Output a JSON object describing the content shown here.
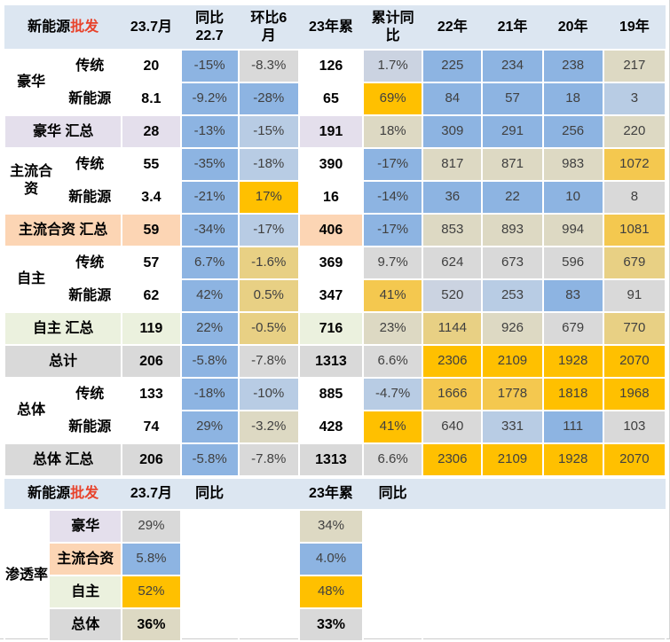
{
  "palette": {
    "header_bg": "#DCE6F1",
    "blue": "#8DB4E2",
    "light_blue": "#B8CCE4",
    "blue_gray": "#CBD3E1",
    "gray": "#D9D9D9",
    "tan": "#DDD9C3",
    "tan_gold": "#E8D084",
    "light_gold": "#F4C84F",
    "gold": "#FFC000",
    "lavender": "#E4DFEC",
    "peach": "#FCD5B4",
    "green": "#EBF1DE",
    "red": "#E8432C",
    "text": "#404040",
    "text_bold": "#000000",
    "white": "#FFFFFF"
  },
  "chart_data": {
    "type": "table",
    "tables": [
      {
        "name": "wholesale",
        "header": {
          "title_black": "新能源",
          "title_red": "批发",
          "cols": [
            "23.7月",
            "同比\n22.7",
            "环比6\n月",
            "23年累",
            "累计同\n比",
            "22年",
            "21年",
            "20年",
            "19年"
          ]
        },
        "rows": [
          {
            "group": "豪华",
            "group_span": 2,
            "label": "传统",
            "cells": [
              {
                "t": "20",
                "bg": "",
                "b": 1
              },
              {
                "t": "-15%",
                "bg": "blue"
              },
              {
                "t": "-8.3%",
                "bg": "gray"
              },
              {
                "t": "126",
                "bg": "",
                "b": 1
              },
              {
                "t": "1.7%",
                "bg": "blue_gray"
              },
              {
                "t": "225",
                "bg": "blue"
              },
              {
                "t": "234",
                "bg": "blue"
              },
              {
                "t": "238",
                "bg": "blue"
              },
              {
                "t": "217",
                "bg": "tan"
              }
            ]
          },
          {
            "label": "新能源",
            "cells": [
              {
                "t": "8.1",
                "bg": "",
                "b": 1
              },
              {
                "t": "-9.2%",
                "bg": "blue"
              },
              {
                "t": "-28%",
                "bg": "blue"
              },
              {
                "t": "65",
                "bg": "",
                "b": 1
              },
              {
                "t": "69%",
                "bg": "gold"
              },
              {
                "t": "84",
                "bg": "blue"
              },
              {
                "t": "57",
                "bg": "blue"
              },
              {
                "t": "18",
                "bg": "blue"
              },
              {
                "t": "3",
                "bg": "light_blue"
              }
            ]
          },
          {
            "merged_label": "豪华 汇总",
            "label_bg": "lavender",
            "cells": [
              {
                "t": "28",
                "bg": "lavender",
                "b": 1
              },
              {
                "t": "-13%",
                "bg": "blue"
              },
              {
                "t": "-15%",
                "bg": "light_blue"
              },
              {
                "t": "191",
                "bg": "lavender",
                "b": 1
              },
              {
                "t": "18%",
                "bg": "tan"
              },
              {
                "t": "309",
                "bg": "blue"
              },
              {
                "t": "291",
                "bg": "blue"
              },
              {
                "t": "256",
                "bg": "blue"
              },
              {
                "t": "220",
                "bg": "tan"
              }
            ]
          },
          {
            "group": "主流合资",
            "group_span": 2,
            "label": "传统",
            "cells": [
              {
                "t": "55",
                "bg": "",
                "b": 1
              },
              {
                "t": "-35%",
                "bg": "blue"
              },
              {
                "t": "-18%",
                "bg": "light_blue"
              },
              {
                "t": "390",
                "bg": "",
                "b": 1
              },
              {
                "t": "-17%",
                "bg": "blue"
              },
              {
                "t": "817",
                "bg": "tan"
              },
              {
                "t": "871",
                "bg": "tan"
              },
              {
                "t": "983",
                "bg": "tan"
              },
              {
                "t": "1072",
                "bg": "light_gold"
              }
            ]
          },
          {
            "label": "新能源",
            "cells": [
              {
                "t": "3.4",
                "bg": "",
                "b": 1
              },
              {
                "t": "-21%",
                "bg": "blue"
              },
              {
                "t": "17%",
                "bg": "gold"
              },
              {
                "t": "16",
                "bg": "",
                "b": 1
              },
              {
                "t": "-14%",
                "bg": "blue"
              },
              {
                "t": "36",
                "bg": "blue"
              },
              {
                "t": "22",
                "bg": "blue"
              },
              {
                "t": "10",
                "bg": "blue"
              },
              {
                "t": "8",
                "bg": "gray"
              }
            ]
          },
          {
            "merged_label": "主流合资 汇总",
            "label_bg": "peach",
            "cells": [
              {
                "t": "59",
                "bg": "peach",
                "b": 1
              },
              {
                "t": "-34%",
                "bg": "blue"
              },
              {
                "t": "-17%",
                "bg": "light_blue"
              },
              {
                "t": "406",
                "bg": "peach",
                "b": 1
              },
              {
                "t": "-17%",
                "bg": "blue"
              },
              {
                "t": "853",
                "bg": "tan"
              },
              {
                "t": "893",
                "bg": "tan"
              },
              {
                "t": "994",
                "bg": "tan"
              },
              {
                "t": "1081",
                "bg": "light_gold"
              }
            ]
          },
          {
            "group": "自主",
            "group_span": 2,
            "label": "传统",
            "cells": [
              {
                "t": "57",
                "bg": "",
                "b": 1
              },
              {
                "t": "6.7%",
                "bg": "blue"
              },
              {
                "t": "-1.6%",
                "bg": "tan_gold"
              },
              {
                "t": "369",
                "bg": "",
                "b": 1
              },
              {
                "t": "9.7%",
                "bg": "gray"
              },
              {
                "t": "624",
                "bg": "gray"
              },
              {
                "t": "673",
                "bg": "gray"
              },
              {
                "t": "596",
                "bg": "gray"
              },
              {
                "t": "679",
                "bg": "tan_gold"
              }
            ]
          },
          {
            "label": "新能源",
            "cells": [
              {
                "t": "62",
                "bg": "",
                "b": 1
              },
              {
                "t": "42%",
                "bg": "blue"
              },
              {
                "t": "0.5%",
                "bg": "tan_gold"
              },
              {
                "t": "347",
                "bg": "",
                "b": 1
              },
              {
                "t": "41%",
                "bg": "light_gold"
              },
              {
                "t": "520",
                "bg": "blue_gray"
              },
              {
                "t": "253",
                "bg": "light_blue"
              },
              {
                "t": "83",
                "bg": "blue"
              },
              {
                "t": "91",
                "bg": "gray"
              }
            ]
          },
          {
            "merged_label": "自主 汇总",
            "label_bg": "green",
            "cells": [
              {
                "t": "119",
                "bg": "green",
                "b": 1
              },
              {
                "t": "22%",
                "bg": "blue"
              },
              {
                "t": "-0.5%",
                "bg": "tan_gold"
              },
              {
                "t": "716",
                "bg": "green",
                "b": 1
              },
              {
                "t": "23%",
                "bg": "tan"
              },
              {
                "t": "1144",
                "bg": "tan_gold"
              },
              {
                "t": "926",
                "bg": "tan"
              },
              {
                "t": "679",
                "bg": "gray"
              },
              {
                "t": "770",
                "bg": "tan_gold"
              }
            ]
          },
          {
            "merged_label": "总计",
            "label_bg": "gray",
            "cells": [
              {
                "t": "206",
                "bg": "gray",
                "b": 1
              },
              {
                "t": "-5.8%",
                "bg": "blue"
              },
              {
                "t": "-7.8%",
                "bg": "gray"
              },
              {
                "t": "1313",
                "bg": "gray",
                "b": 1
              },
              {
                "t": "6.6%",
                "bg": "gray"
              },
              {
                "t": "2306",
                "bg": "gold"
              },
              {
                "t": "2109",
                "bg": "gold"
              },
              {
                "t": "1928",
                "bg": "gold"
              },
              {
                "t": "2070",
                "bg": "gold"
              }
            ]
          },
          {
            "group": "总体",
            "group_span": 2,
            "label": "传统",
            "cells": [
              {
                "t": "133",
                "bg": "",
                "b": 1
              },
              {
                "t": "-18%",
                "bg": "blue"
              },
              {
                "t": "-10%",
                "bg": "light_blue"
              },
              {
                "t": "885",
                "bg": "",
                "b": 1
              },
              {
                "t": "-4.7%",
                "bg": "light_blue"
              },
              {
                "t": "1666",
                "bg": "light_gold"
              },
              {
                "t": "1778",
                "bg": "light_gold"
              },
              {
                "t": "1818",
                "bg": "gold"
              },
              {
                "t": "1968",
                "bg": "gold"
              }
            ]
          },
          {
            "label": "新能源",
            "cells": [
              {
                "t": "74",
                "bg": "",
                "b": 1
              },
              {
                "t": "29%",
                "bg": "blue"
              },
              {
                "t": "-3.2%",
                "bg": "tan"
              },
              {
                "t": "428",
                "bg": "",
                "b": 1
              },
              {
                "t": "41%",
                "bg": "gold"
              },
              {
                "t": "640",
                "bg": "gray"
              },
              {
                "t": "331",
                "bg": "light_blue"
              },
              {
                "t": "111",
                "bg": "blue"
              },
              {
                "t": "103",
                "bg": "gray"
              }
            ]
          },
          {
            "merged_label": "总体 汇总",
            "label_bg": "gray",
            "cells": [
              {
                "t": "206",
                "bg": "gray",
                "b": 1
              },
              {
                "t": "-5.8%",
                "bg": "blue"
              },
              {
                "t": "-7.8%",
                "bg": "gray"
              },
              {
                "t": "1313",
                "bg": "gray",
                "b": 1
              },
              {
                "t": "6.6%",
                "bg": "gray"
              },
              {
                "t": "2306",
                "bg": "gold"
              },
              {
                "t": "2109",
                "bg": "gold"
              },
              {
                "t": "1928",
                "bg": "gold"
              },
              {
                "t": "2070",
                "bg": "gold"
              }
            ]
          }
        ]
      },
      {
        "name": "penetration",
        "side_label": "渗透率",
        "header": {
          "title_black": "新能源",
          "title_red": "批发",
          "cols": [
            "23.7月",
            "同比",
            "",
            "23年累",
            "同比"
          ]
        },
        "rows": [
          {
            "label": "豪华",
            "label_bg": "lavender",
            "v1": {
              "t": "29%",
              "bg": "gray"
            },
            "v2": {
              "t": "34%",
              "bg": "tan"
            }
          },
          {
            "label": "主流合资",
            "label_bg": "peach",
            "v1": {
              "t": "5.8%",
              "bg": "blue"
            },
            "v2": {
              "t": "4.0%",
              "bg": "blue"
            }
          },
          {
            "label": "自主",
            "label_bg": "green",
            "v1": {
              "t": "52%",
              "bg": "gold"
            },
            "v2": {
              "t": "48%",
              "bg": "gold"
            }
          },
          {
            "label": "总体",
            "label_bg": "gray",
            "v1": {
              "t": "36%",
              "bg": "tan",
              "b": 1
            },
            "v2": {
              "t": "33%",
              "bg": "gray",
              "b": 1
            }
          }
        ]
      }
    ]
  }
}
